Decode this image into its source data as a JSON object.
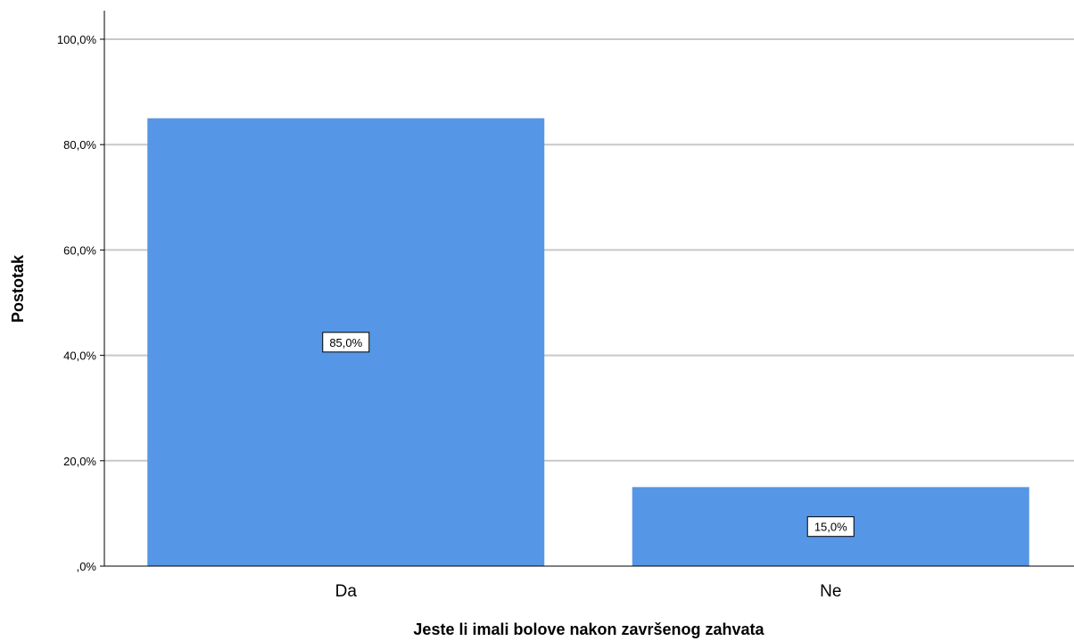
{
  "chart_data": {
    "type": "bar",
    "categories": [
      "Da",
      "Ne"
    ],
    "values": [
      85.0,
      15.0
    ],
    "data_labels": [
      "85,0%",
      "15,0%"
    ],
    "title": "",
    "xlabel": "Jeste li imali bolove nakon završenog zahvata",
    "ylabel": "Postotak",
    "ylim": [
      0,
      100
    ],
    "yticks": [
      0,
      20,
      40,
      60,
      80,
      100
    ],
    "ytick_labels": [
      ",0%",
      "20,0%",
      "40,0%",
      "60,0%",
      "80,0%",
      "100,0%"
    ],
    "grid": "horizontal",
    "legend": "none",
    "colors": {
      "bar": "#5596e6",
      "grid": "#c8c8c8",
      "axis": "#000000",
      "background": "#ffffff"
    }
  }
}
